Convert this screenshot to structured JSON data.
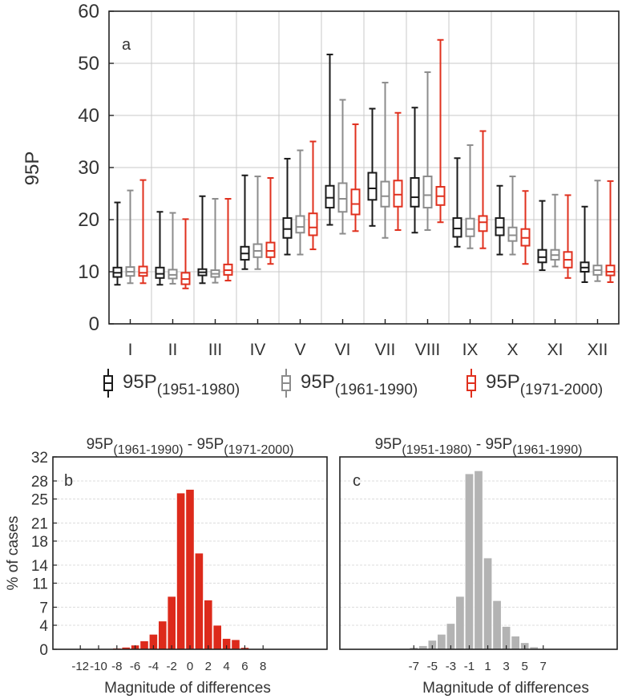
{
  "chart_data": [
    {
      "panel": "a",
      "type": "box",
      "ylabel": "95P",
      "ylim": [
        0,
        60
      ],
      "yticks": [
        0,
        10,
        20,
        30,
        40,
        50,
        60
      ],
      "grid": true,
      "categories": [
        "I",
        "II",
        "III",
        "IV",
        "V",
        "VI",
        "VII",
        "VIII",
        "IX",
        "X",
        "XI",
        "XII"
      ],
      "legend_placement": "bottom",
      "series": [
        {
          "name": "95P",
          "name_sub": "(1951-1980)",
          "color": "#1a1a1a",
          "boxes": [
            {
              "min": 7.5,
              "q1": 9.0,
              "median": 9.8,
              "q3": 10.8,
              "max": 23.3
            },
            {
              "min": 7.5,
              "q1": 8.8,
              "median": 9.6,
              "q3": 10.8,
              "max": 21.5
            },
            {
              "min": 7.8,
              "q1": 9.3,
              "median": 9.9,
              "q3": 10.5,
              "max": 24.5
            },
            {
              "min": 10.5,
              "q1": 12.3,
              "median": 13.5,
              "q3": 14.8,
              "max": 28.5
            },
            {
              "min": 13.3,
              "q1": 16.5,
              "median": 18.2,
              "q3": 20.3,
              "max": 31.7
            },
            {
              "min": 19.0,
              "q1": 22.3,
              "median": 24.2,
              "q3": 26.5,
              "max": 51.7
            },
            {
              "min": 18.8,
              "q1": 23.8,
              "median": 26.0,
              "q3": 29.0,
              "max": 41.3
            },
            {
              "min": 17.5,
              "q1": 22.5,
              "median": 24.3,
              "q3": 28.0,
              "max": 41.5
            },
            {
              "min": 14.8,
              "q1": 16.7,
              "median": 18.3,
              "q3": 20.3,
              "max": 31.8
            },
            {
              "min": 13.3,
              "q1": 17.0,
              "median": 18.5,
              "q3": 20.3,
              "max": 26.5
            },
            {
              "min": 10.3,
              "q1": 11.8,
              "median": 12.8,
              "q3": 14.2,
              "max": 23.6
            },
            {
              "min": 8.0,
              "q1": 10.0,
              "median": 10.8,
              "q3": 11.8,
              "max": 22.5
            }
          ]
        },
        {
          "name": "95P",
          "name_sub": "(1961-1990)",
          "color": "#8c8c8c",
          "boxes": [
            {
              "min": 7.8,
              "q1": 9.2,
              "median": 10.0,
              "q3": 10.9,
              "max": 25.6
            },
            {
              "min": 7.7,
              "q1": 8.7,
              "median": 9.4,
              "q3": 10.4,
              "max": 21.3
            },
            {
              "min": 7.9,
              "q1": 9.0,
              "median": 9.6,
              "q3": 10.3,
              "max": 24.0
            },
            {
              "min": 10.5,
              "q1": 12.8,
              "median": 14.0,
              "q3": 15.3,
              "max": 28.3
            },
            {
              "min": 13.3,
              "q1": 17.5,
              "median": 18.6,
              "q3": 20.7,
              "max": 33.3
            },
            {
              "min": 17.3,
              "q1": 21.5,
              "median": 24.0,
              "q3": 27.0,
              "max": 43.0
            },
            {
              "min": 16.5,
              "q1": 22.5,
              "median": 24.5,
              "q3": 27.3,
              "max": 46.3
            },
            {
              "min": 18.0,
              "q1": 22.3,
              "median": 24.7,
              "q3": 28.3,
              "max": 48.3
            },
            {
              "min": 14.5,
              "q1": 16.8,
              "median": 18.2,
              "q3": 20.2,
              "max": 34.3
            },
            {
              "min": 13.3,
              "q1": 15.9,
              "median": 17.0,
              "q3": 18.5,
              "max": 28.3
            },
            {
              "min": 11.0,
              "q1": 12.3,
              "median": 13.2,
              "q3": 14.2,
              "max": 24.8
            },
            {
              "min": 8.2,
              "q1": 9.4,
              "median": 10.3,
              "q3": 11.2,
              "max": 27.5
            }
          ]
        },
        {
          "name": "95P",
          "name_sub": "(1971-2000)",
          "color": "#e0301e",
          "boxes": [
            {
              "min": 7.8,
              "q1": 9.2,
              "median": 9.8,
              "q3": 11.0,
              "max": 27.6
            },
            {
              "min": 6.8,
              "q1": 7.6,
              "median": 8.6,
              "q3": 9.8,
              "max": 20.1
            },
            {
              "min": 8.3,
              "q1": 9.4,
              "median": 10.3,
              "q3": 11.4,
              "max": 24.0
            },
            {
              "min": 11.5,
              "q1": 12.8,
              "median": 14.0,
              "q3": 15.6,
              "max": 28.0
            },
            {
              "min": 14.3,
              "q1": 17.0,
              "median": 18.5,
              "q3": 21.2,
              "max": 35.0
            },
            {
              "min": 17.8,
              "q1": 21.0,
              "median": 23.0,
              "q3": 25.8,
              "max": 38.3
            },
            {
              "min": 18.0,
              "q1": 22.5,
              "median": 24.8,
              "q3": 27.5,
              "max": 40.5
            },
            {
              "min": 19.5,
              "q1": 22.8,
              "median": 24.5,
              "q3": 26.3,
              "max": 54.5
            },
            {
              "min": 14.5,
              "q1": 17.8,
              "median": 19.5,
              "q3": 20.7,
              "max": 37.0
            },
            {
              "min": 11.5,
              "q1": 15.0,
              "median": 16.5,
              "q3": 18.2,
              "max": 25.5
            },
            {
              "min": 8.8,
              "q1": 10.8,
              "median": 12.3,
              "q3": 13.8,
              "max": 24.7
            },
            {
              "min": 8.0,
              "q1": 9.3,
              "median": 10.0,
              "q3": 11.2,
              "max": 27.4
            }
          ]
        }
      ]
    },
    {
      "panel": "b",
      "type": "bar",
      "title_left": "95P",
      "title_left_sub": "(1961-1990)",
      "title_sep": " - ",
      "title_right": "95P",
      "title_right_sub": "(1971-2000)",
      "xlabel": "Magnitude of differences",
      "ylabel": "% of cases",
      "ylim": [
        0,
        32
      ],
      "yticks": [
        0,
        4,
        7,
        11,
        14,
        18,
        21,
        25,
        28,
        32
      ],
      "xlim": [
        -15,
        15
      ],
      "xticks": [
        -12,
        -10,
        -8,
        -6,
        -4,
        -2,
        0,
        2,
        4,
        6,
        8
      ],
      "bar_color": "#dd2a1b",
      "x": [
        -12,
        -11,
        -10,
        -9,
        -8,
        -7,
        -6,
        -5,
        -4,
        -3,
        -2,
        -1,
        0,
        1,
        2,
        3,
        4,
        5,
        6,
        7,
        8
      ],
      "values": [
        0.05,
        0.05,
        0.05,
        0.1,
        0.2,
        0.35,
        0.7,
        1.4,
        2.5,
        4.7,
        8.8,
        26.0,
        26.6,
        16.0,
        8.2,
        4.0,
        1.8,
        1.6,
        0.3,
        0.1,
        0.05
      ]
    },
    {
      "panel": "c",
      "type": "bar",
      "title_left": "95P",
      "title_left_sub": "(1951-1980)",
      "title_sep": " - ",
      "title_right": "95P",
      "title_right_sub": "(1961-1990)",
      "xlabel": "Magnitude of differences",
      "ylim": [
        0,
        32
      ],
      "xlim": [
        -15,
        15
      ],
      "xticks": [
        -7,
        -5,
        -3,
        -1,
        1,
        3,
        5,
        7
      ],
      "bar_color": "#b3b3b3",
      "x": [
        -8,
        -7,
        -6,
        -5,
        -4,
        -3,
        -2,
        -1,
        0,
        1,
        2,
        3,
        4,
        5,
        6
      ],
      "values": [
        0.1,
        0.3,
        0.6,
        1.5,
        2.5,
        4.3,
        8.8,
        29.2,
        29.7,
        15.2,
        8.1,
        3.8,
        2.2,
        1.1,
        0.4
      ]
    }
  ]
}
